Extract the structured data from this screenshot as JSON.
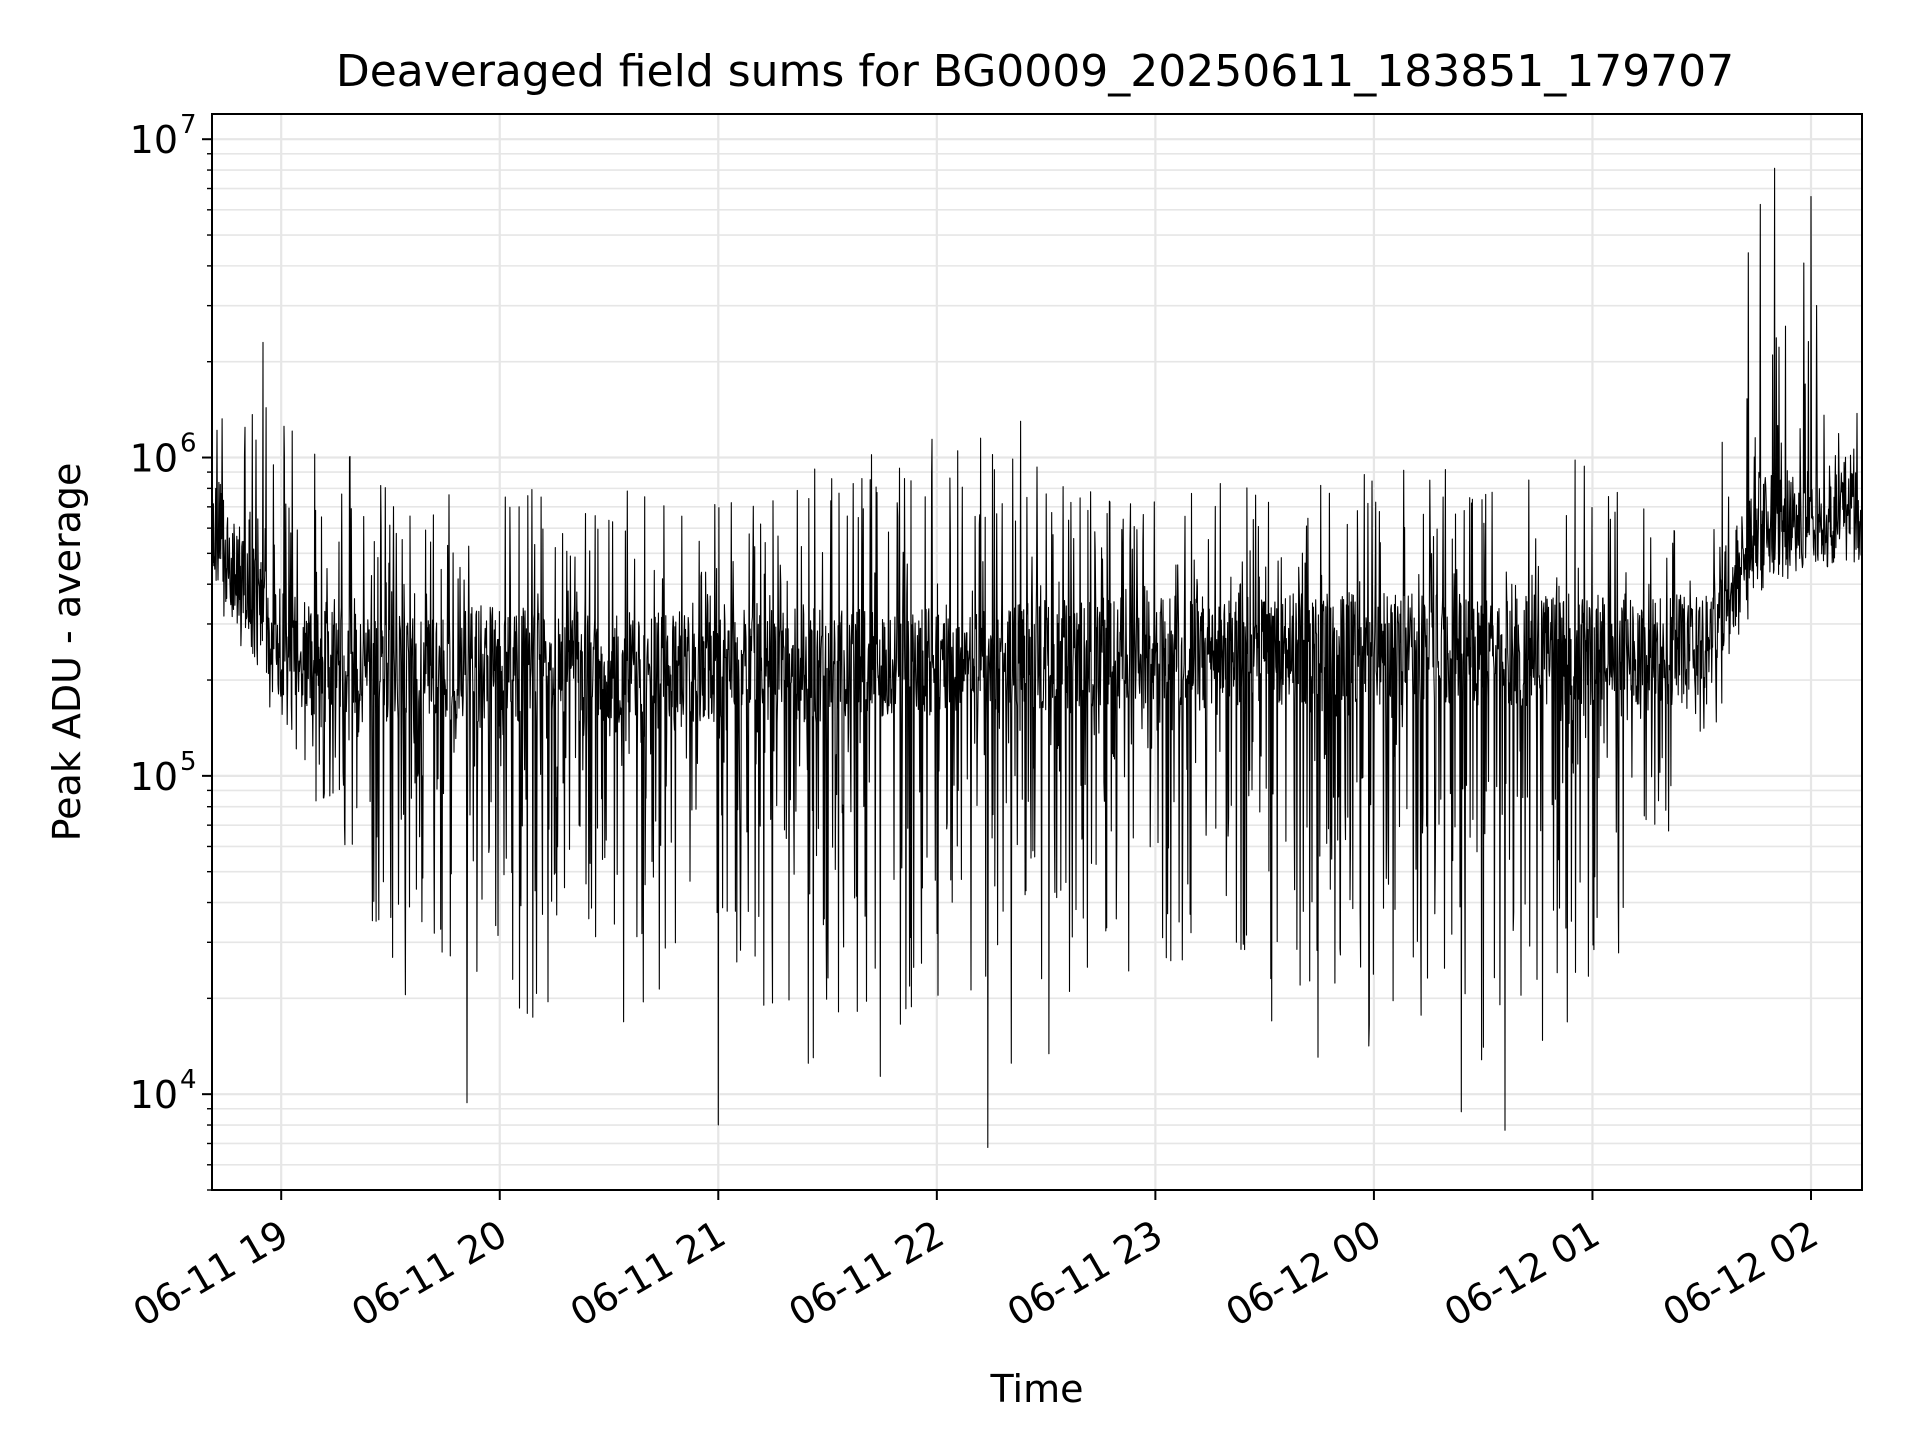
{
  "chart_data": {
    "type": "line",
    "title": "Deaveraged field sums for BG0009_20250611_183851_179707",
    "xlabel": "Time",
    "ylabel": "Peak ADU - average",
    "yscale": "log",
    "ylim": [
      5000,
      12000000
    ],
    "xlim": [
      "2025-06-11 18:41",
      "2025-06-12 02:14"
    ],
    "grid": true,
    "line_color": "#000000",
    "grid_color": "#e6e6e6",
    "x_ticks": [
      {
        "value": "2025-06-11 19:00",
        "label": "06-11 19"
      },
      {
        "value": "2025-06-11 20:00",
        "label": "06-11 20"
      },
      {
        "value": "2025-06-11 21:00",
        "label": "06-11 21"
      },
      {
        "value": "2025-06-11 22:00",
        "label": "06-11 22"
      },
      {
        "value": "2025-06-11 23:00",
        "label": "06-11 23"
      },
      {
        "value": "2025-06-12 00:00",
        "label": "06-12 00"
      },
      {
        "value": "2025-06-12 01:00",
        "label": "06-12 01"
      },
      {
        "value": "2025-06-12 02:00",
        "label": "06-12 02"
      }
    ],
    "y_ticks": [
      {
        "value": 10000,
        "base": "10",
        "exp": "4"
      },
      {
        "value": 100000,
        "base": "10",
        "exp": "5"
      },
      {
        "value": 1000000,
        "base": "10",
        "exp": "6"
      },
      {
        "value": 10000000,
        "base": "10",
        "exp": "7"
      }
    ],
    "envelope": {
      "description_points": [
        {
          "t": "2025-06-11 18:41",
          "base": 600000,
          "low": 300000,
          "high": 1300000
        },
        {
          "t": "2025-06-11 19:00",
          "base": 250000,
          "low": 120000,
          "high": 1600000
        },
        {
          "t": "2025-06-11 19:30",
          "base": 220000,
          "low": 20000,
          "high": 900000
        },
        {
          "t": "2025-06-11 21:00",
          "base": 220000,
          "low": 12000,
          "high": 750000
        },
        {
          "t": "2025-06-11 22:00",
          "base": 230000,
          "low": 9000,
          "high": 1300000
        },
        {
          "t": "2025-06-11 23:00",
          "base": 250000,
          "low": 15000,
          "high": 800000
        },
        {
          "t": "2025-06-12 00:00",
          "base": 250000,
          "low": 9000,
          "high": 900000
        },
        {
          "t": "2025-06-12 01:00",
          "base": 250000,
          "low": 12000,
          "high": 1000000
        },
        {
          "t": "2025-06-12 01:30",
          "base": 250000,
          "low": 90000,
          "high": 500000
        },
        {
          "t": "2025-06-12 01:45",
          "base": 600000,
          "low": 350000,
          "high": 8000000
        },
        {
          "t": "2025-06-12 02:14",
          "base": 700000,
          "low": 450000,
          "high": 2200000
        }
      ]
    },
    "notable_points": [
      {
        "t": "2025-06-11 18:55",
        "y": 2300000
      },
      {
        "t": "2025-06-11 19:51",
        "y": 9400
      },
      {
        "t": "2025-06-11 21:00",
        "y": 8000
      },
      {
        "t": "2025-06-11 22:14",
        "y": 6800
      },
      {
        "t": "2025-06-11 22:23",
        "y": 1300000
      },
      {
        "t": "2025-06-12 00:24",
        "y": 8800
      },
      {
        "t": "2025-06-12 00:36",
        "y": 7700
      },
      {
        "t": "2025-06-12 01:50",
        "y": 8100000
      },
      {
        "t": "2025-06-12 02:00",
        "y": 6600000
      }
    ]
  }
}
